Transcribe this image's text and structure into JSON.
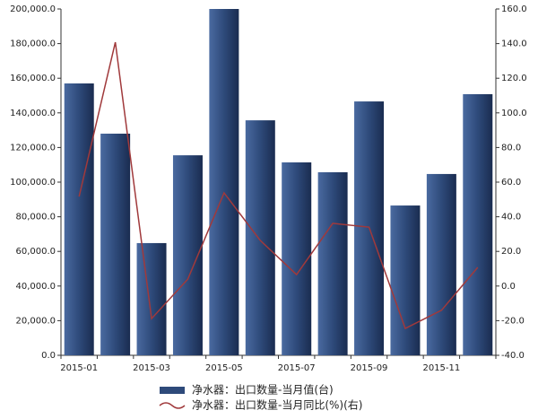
{
  "chart_data": {
    "type": "bar-line",
    "categories": [
      "2015-01",
      null,
      "2015-03",
      null,
      "2015-05",
      null,
      "2015-07",
      null,
      "2015-09",
      null,
      "2015-11",
      null
    ],
    "series": [
      {
        "name": "净水器：出口数量-当月值(台)",
        "type": "bar",
        "color": "#2e4a7a",
        "values": [
          157000,
          128000,
          64800,
          115500,
          200000,
          135700,
          111400,
          105700,
          146600,
          86500,
          104700,
          150800
        ]
      },
      {
        "name": "净水器：出口数量-当月同比(%)(右)",
        "type": "line",
        "axis": "y2",
        "color": "#a0393b",
        "values": [
          51.7,
          140.8,
          -18.8,
          4,
          53.8,
          26.3,
          6.6,
          36.2,
          34,
          -24.5,
          -14,
          10.8
        ]
      }
    ],
    "ylim": [
      0,
      200000
    ],
    "yticks": [
      {
        "value": 0,
        "label": "0.0"
      },
      {
        "value": 20000,
        "label": "20,000.0"
      },
      {
        "value": 40000,
        "label": "40,000.0"
      },
      {
        "value": 60000,
        "label": "60,000.0"
      },
      {
        "value": 80000,
        "label": "80,000.0"
      },
      {
        "value": 100000,
        "label": "100,000.0"
      },
      {
        "value": 120000,
        "label": "120,000.0"
      },
      {
        "value": 140000,
        "label": "140,000.0"
      },
      {
        "value": 160000,
        "label": "160,000.0"
      },
      {
        "value": 180000,
        "label": "180,000.0"
      },
      {
        "value": 200000,
        "label": "200,000.0"
      }
    ],
    "y2lim": [
      -40,
      160
    ],
    "y2ticks": [
      {
        "value": -40,
        "label": "-40.0"
      },
      {
        "value": -20,
        "label": "-20.0"
      },
      {
        "value": 0,
        "label": "0.0"
      },
      {
        "value": 20,
        "label": "20.0"
      },
      {
        "value": 40,
        "label": "40.0"
      },
      {
        "value": 60,
        "label": "60.0"
      },
      {
        "value": 80,
        "label": "80.0"
      },
      {
        "value": 100,
        "label": "100.0"
      },
      {
        "value": 120,
        "label": "120.0"
      },
      {
        "value": 140,
        "label": "140.0"
      },
      {
        "value": 160,
        "label": "160.0"
      }
    ]
  }
}
